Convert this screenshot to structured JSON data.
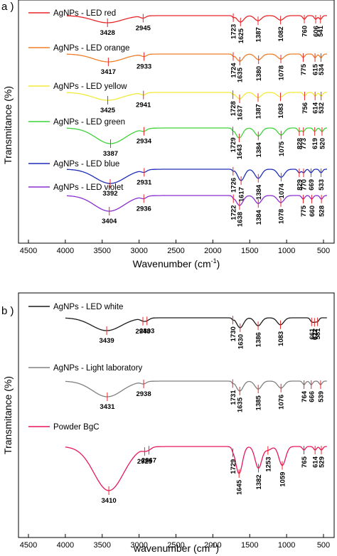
{
  "chart_data": [
    {
      "type": "line",
      "panel_label": "a )",
      "xlabel": "Wavenumber (cm",
      "xlabel_sup": "-1",
      "xlabel_close": ")",
      "ylabel": "Transmitance (%)",
      "xlim": [
        4500,
        400
      ],
      "x_ticks": [
        4500,
        4000,
        3500,
        3000,
        2500,
        2000,
        1500,
        1000,
        500
      ],
      "series": [
        {
          "name": "AgNPs - LED red",
          "color": "#e8262a",
          "peaks": [
            3428,
            2945,
            1723,
            1625,
            1387,
            1082,
            760,
            606,
            541
          ]
        },
        {
          "name": "AgNPs - LED orange",
          "color": "#f07f2b",
          "peaks": [
            3417,
            2933,
            1724,
            1635,
            1380,
            1078,
            775,
            615,
            534
          ]
        },
        {
          "name": "AgNPs - LED yellow",
          "color": "#f2ea3a",
          "peaks": [
            3425,
            2941,
            1728,
            1637,
            1387,
            1083,
            756,
            614,
            532
          ]
        },
        {
          "name": "AgNPs - LED green",
          "color": "#3fd33a",
          "peaks": [
            3387,
            2934,
            1729,
            1643,
            1384,
            1075,
            828,
            773,
            619,
            520
          ]
        },
        {
          "name": "AgNPs - LED blue",
          "color": "#1f2fb8",
          "peaks": [
            3392,
            2931,
            1726,
            1617,
            1384,
            1074,
            770,
            829,
            669,
            533
          ]
        },
        {
          "name": "AgNPs - LED violet",
          "color": "#8a2fd0",
          "peaks": [
            3404,
            2936,
            1722,
            1638,
            1384,
            1078,
            775,
            660,
            528
          ]
        }
      ]
    },
    {
      "type": "line",
      "panel_label": "b )",
      "xlabel": "wavenumber (cm",
      "xlabel_sup": "-1",
      "xlabel_close": ")",
      "ylabel": "Transmitance (%)",
      "xlim": [
        4500,
        400
      ],
      "x_ticks": [
        4500,
        4000,
        3500,
        3000,
        2500,
        2000,
        1500,
        1000,
        500
      ],
      "series": [
        {
          "name": "AgNPs - LED white",
          "color": "#1a1a1a",
          "peaks": [
            3439,
            2948,
            2893,
            1730,
            1630,
            1386,
            1083,
            661,
            622,
            581
          ]
        },
        {
          "name": "AgNPs - Light laboratory",
          "color": "#808080",
          "peaks": [
            3431,
            2938,
            1731,
            1635,
            1385,
            1076,
            764,
            666,
            539
          ]
        },
        {
          "name": "Powder BgC",
          "color": "#e8175d",
          "peaks": [
            3410,
            2925,
            2867,
            1729,
            1645,
            1382,
            1253,
            1059,
            765,
            614,
            529
          ]
        }
      ]
    }
  ]
}
